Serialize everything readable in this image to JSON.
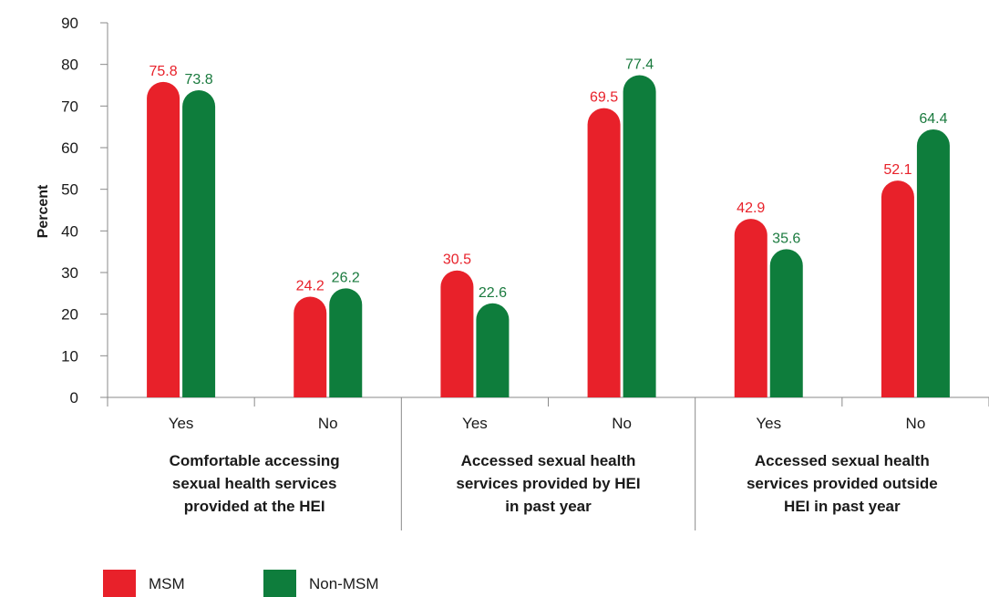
{
  "chart_data": {
    "type": "bar",
    "title": "",
    "xlabel": "",
    "ylabel": "Percent",
    "ylim": [
      0,
      90
    ],
    "yticks": [
      0,
      10,
      20,
      30,
      40,
      50,
      60,
      70,
      80,
      90
    ],
    "grid": false,
    "legend_position": "bottom-left",
    "categories": [
      "Yes",
      "No",
      "Yes",
      "No",
      "Yes",
      "No"
    ],
    "groups": [
      {
        "label_lines": [
          "Comfortable accessing",
          "sexual health services",
          "provided at the HEI"
        ]
      },
      {
        "label_lines": [
          "Accessed sexual health",
          "services provided by HEI",
          "in past year"
        ]
      },
      {
        "label_lines": [
          "Accessed sexual health",
          "services provided outside",
          "HEI in past year"
        ]
      }
    ],
    "series": [
      {
        "name": "MSM",
        "color": "#e8212a",
        "label_color": "#e8212a",
        "values": [
          75.8,
          24.2,
          30.5,
          69.5,
          42.9,
          52.1
        ]
      },
      {
        "name": "Non-MSM",
        "color": "#0e7d3c",
        "label_color": "#1a7a3e",
        "values": [
          73.8,
          26.2,
          22.6,
          77.4,
          35.6,
          64.4
        ]
      }
    ],
    "value_format": "0.1"
  }
}
